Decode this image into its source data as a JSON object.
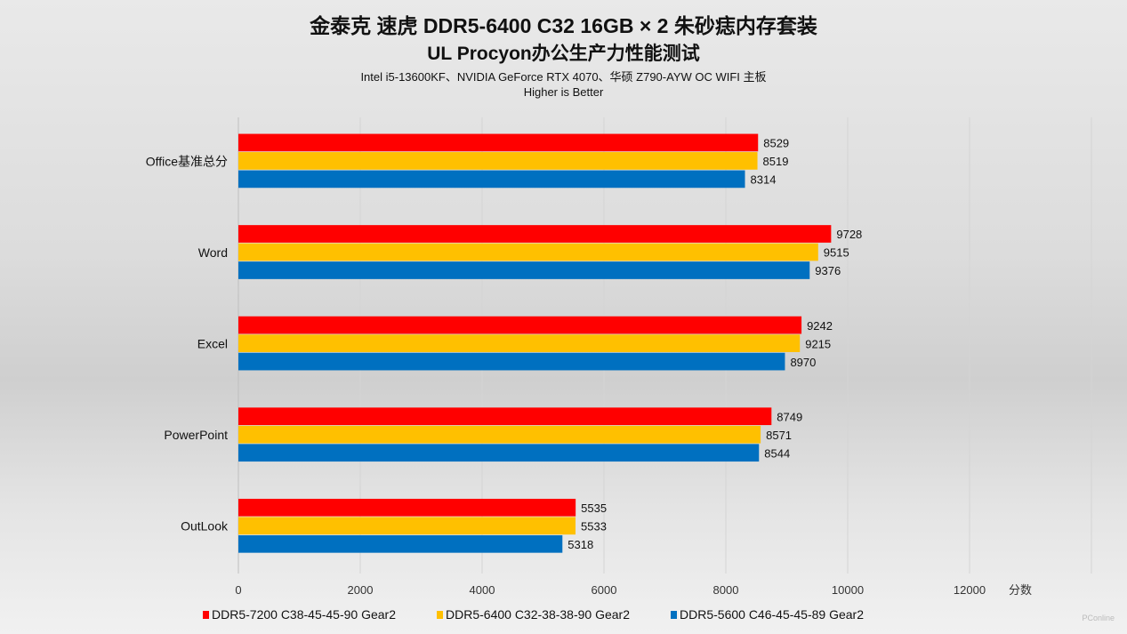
{
  "chart_data": {
    "type": "bar",
    "orientation": "horizontal",
    "title": "金泰克 速虎 DDR5-6400 C32 16GB × 2 朱砂痣内存套装",
    "subtitle": "UL Procyon办公生产力性能测试",
    "config": "Intel i5-13600KF、NVIDIA GeForce RTX 4070、华硕 Z790-AYW OC WIFI 主板",
    "note": "Higher is Better",
    "categories": [
      "Office基准总分",
      "Word",
      "Excel",
      "PowerPoint",
      "OutLook"
    ],
    "series": [
      {
        "name": "DDR5-7200 C38-45-45-90 Gear2",
        "color": "#ff0000",
        "values": [
          8529,
          9728,
          9242,
          8749,
          5535
        ]
      },
      {
        "name": "DDR5-6400 C32-38-38-90 Gear2",
        "color": "#ffc000",
        "values": [
          8519,
          9515,
          9215,
          8571,
          5533
        ]
      },
      {
        "name": "DDR5-5600 C46-45-45-89 Gear2",
        "color": "#0070c0",
        "values": [
          8314,
          9376,
          8970,
          8544,
          5318
        ]
      }
    ],
    "xlabel": "分数",
    "xticks": [
      "0",
      "2000",
      "4000",
      "6000",
      "8000",
      "10000",
      "12000"
    ],
    "xlim": [
      0,
      14000
    ],
    "grid": true,
    "legend_position": "bottom"
  },
  "watermark": "PConline"
}
